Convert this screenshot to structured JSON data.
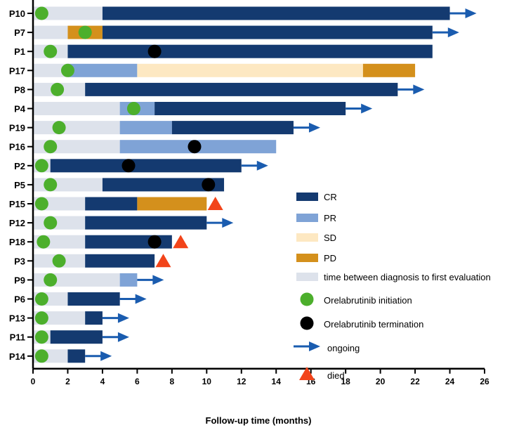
{
  "chart_data": {
    "type": "swimmer",
    "xlabel": "Follow-up time  (months)",
    "xlim": [
      0,
      26
    ],
    "xticks": [
      0,
      2,
      4,
      6,
      8,
      10,
      12,
      14,
      16,
      18,
      20,
      22,
      24,
      26
    ],
    "colors": {
      "CR": "#143a70",
      "PR": "#7fa3d6",
      "SD": "#fde8c2",
      "PD": "#d4901c",
      "eval": "#dde2eb",
      "init": "#4caf2c",
      "term": "#000000",
      "ongoing": "#1a5caf",
      "died": "#f2441a"
    },
    "legend": [
      {
        "key": "CR",
        "label": "CR"
      },
      {
        "key": "PR",
        "label": "PR"
      },
      {
        "key": "SD",
        "label": "SD"
      },
      {
        "key": "PD",
        "label": "PD"
      },
      {
        "key": "eval",
        "label": "time between diagnosis to first evaluation"
      },
      {
        "key": "init",
        "label": "Orelabrutinib initiation"
      },
      {
        "key": "term",
        "label": "Orelabrutinib termination"
      },
      {
        "key": "ongoing",
        "label": "ongoing"
      },
      {
        "key": "died",
        "label": "died"
      }
    ],
    "patients": [
      {
        "id": "P10",
        "segments": [
          [
            "eval",
            0,
            4
          ],
          [
            "CR",
            4,
            24
          ]
        ],
        "init": 0.5,
        "term": null,
        "ongoing": true,
        "died": null
      },
      {
        "id": "P7",
        "segments": [
          [
            "eval",
            0,
            2
          ],
          [
            "PD",
            2,
            4
          ],
          [
            "CR",
            4,
            23
          ]
        ],
        "init": 3,
        "term": null,
        "ongoing": true,
        "died": null
      },
      {
        "id": "P1",
        "segments": [
          [
            "eval",
            0,
            2
          ],
          [
            "CR",
            2,
            23
          ]
        ],
        "init": 1,
        "term": 7,
        "ongoing": false,
        "died": null
      },
      {
        "id": "P17",
        "segments": [
          [
            "eval",
            0,
            2
          ],
          [
            "PR",
            2,
            6
          ],
          [
            "SD",
            6,
            19
          ],
          [
            "PD",
            19,
            22
          ]
        ],
        "init": 2,
        "term": null,
        "ongoing": false,
        "died": null
      },
      {
        "id": "P8",
        "segments": [
          [
            "eval",
            0,
            3
          ],
          [
            "CR",
            3,
            21
          ]
        ],
        "init": 1.4,
        "term": null,
        "ongoing": true,
        "died": null
      },
      {
        "id": "P4",
        "segments": [
          [
            "eval",
            0,
            5
          ],
          [
            "PR",
            5,
            7
          ],
          [
            "CR",
            7,
            18
          ]
        ],
        "init": 5.8,
        "term": null,
        "ongoing": true,
        "died": null
      },
      {
        "id": "P19",
        "segments": [
          [
            "eval",
            0,
            5
          ],
          [
            "PR",
            5,
            8
          ],
          [
            "CR",
            8,
            15
          ]
        ],
        "init": 1.5,
        "term": null,
        "ongoing": true,
        "died": null
      },
      {
        "id": "P16",
        "segments": [
          [
            "eval",
            0,
            5
          ],
          [
            "PR",
            5,
            14
          ]
        ],
        "init": 1,
        "term": 9.3,
        "ongoing": false,
        "died": null
      },
      {
        "id": "P2",
        "segments": [
          [
            "eval",
            0,
            1
          ],
          [
            "CR",
            1,
            12
          ]
        ],
        "init": 0.5,
        "term": 5.5,
        "ongoing": true,
        "died": null
      },
      {
        "id": "P5",
        "segments": [
          [
            "eval",
            0,
            4
          ],
          [
            "CR",
            4,
            11
          ]
        ],
        "init": 1,
        "term": 10.1,
        "ongoing": false,
        "died": null
      },
      {
        "id": "P15",
        "segments": [
          [
            "eval",
            0,
            3
          ],
          [
            "CR",
            3,
            6
          ],
          [
            "PD",
            6,
            10
          ]
        ],
        "init": 0.5,
        "term": null,
        "ongoing": false,
        "died": 10.5
      },
      {
        "id": "P12",
        "segments": [
          [
            "eval",
            0,
            3
          ],
          [
            "CR",
            3,
            10
          ]
        ],
        "init": 1,
        "term": null,
        "ongoing": true,
        "died": null
      },
      {
        "id": "P18",
        "segments": [
          [
            "eval",
            0,
            3
          ],
          [
            "CR",
            3,
            8
          ]
        ],
        "init": 0.6,
        "term": 7,
        "ongoing": false,
        "died": 8.5
      },
      {
        "id": "P3",
        "segments": [
          [
            "eval",
            0,
            3
          ],
          [
            "CR",
            3,
            7
          ]
        ],
        "init": 1.5,
        "term": null,
        "ongoing": false,
        "died": 7.5
      },
      {
        "id": "P9",
        "segments": [
          [
            "eval",
            0,
            5
          ],
          [
            "PR",
            5,
            6
          ]
        ],
        "init": 1,
        "term": null,
        "ongoing": true,
        "died": null
      },
      {
        "id": "P6",
        "segments": [
          [
            "eval",
            0,
            2
          ],
          [
            "CR",
            2,
            5
          ]
        ],
        "init": 0.5,
        "term": null,
        "ongoing": true,
        "died": null
      },
      {
        "id": "P13",
        "segments": [
          [
            "eval",
            0,
            3
          ],
          [
            "CR",
            3,
            4
          ]
        ],
        "init": 0.5,
        "term": null,
        "ongoing": true,
        "died": null
      },
      {
        "id": "P11",
        "segments": [
          [
            "eval",
            0,
            1
          ],
          [
            "CR",
            1,
            4
          ]
        ],
        "init": 0.5,
        "term": null,
        "ongoing": true,
        "died": null
      },
      {
        "id": "P14",
        "segments": [
          [
            "eval",
            0,
            2
          ],
          [
            "CR",
            2,
            3
          ]
        ],
        "init": 0.5,
        "term": null,
        "ongoing": true,
        "died": null
      }
    ]
  }
}
